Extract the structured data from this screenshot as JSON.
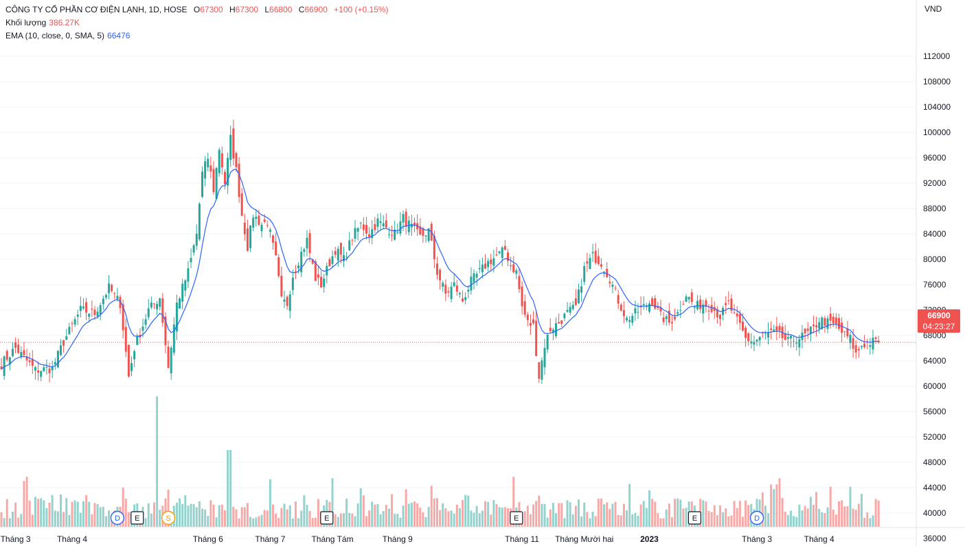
{
  "legend": {
    "title": "CÔNG TY CỔ PHẦN CƠ ĐIỆN LẠNH, 1D, HOSE",
    "o_label": "O",
    "o_value": "67300",
    "h_label": "H",
    "h_value": "67300",
    "l_label": "L",
    "l_value": "66800",
    "c_label": "C",
    "c_value": "66900",
    "change": "+100 (+0.15%)",
    "volume_label": "Khối lượng",
    "volume_value": "386.27K",
    "ema_label": "EMA (10, close, 0, SMA, 5)",
    "ema_value": "66476"
  },
  "currency": "VND",
  "price_tag": {
    "value": "66900",
    "countdown": "04:23:27"
  },
  "colors": {
    "up": "#26a69a",
    "down": "#ef5350",
    "up_volume": "#94d3cd",
    "down_volume": "#f7a9a7",
    "ema": "#2962ff",
    "grid": "#f0f3fa"
  },
  "chart_data": {
    "type": "candlestick",
    "ylim": [
      32000,
      116000
    ],
    "y_ticks": [
      36000,
      40000,
      44000,
      48000,
      52000,
      56000,
      60000,
      64000,
      68000,
      72000,
      76000,
      80000,
      84000,
      88000,
      92000,
      96000,
      100000,
      104000,
      108000,
      112000
    ],
    "x_labels": [
      {
        "label": "Tháng 3",
        "bar": 5
      },
      {
        "label": "Tháng 4",
        "bar": 25
      },
      {
        "label": "Tháng 6",
        "bar": 73
      },
      {
        "label": "Tháng 7",
        "bar": 95
      },
      {
        "label": "Tháng Tám",
        "bar": 117
      },
      {
        "label": "Tháng 9",
        "bar": 140
      },
      {
        "label": "Tháng 11",
        "bar": 184
      },
      {
        "label": "Tháng Mười hai",
        "bar": 206
      },
      {
        "label": "2023",
        "bar": 229
      },
      {
        "label": "Tháng 3",
        "bar": 267
      },
      {
        "label": "Tháng 4",
        "bar": 289
      }
    ],
    "events": [
      {
        "label": "D",
        "bar": 41,
        "color": "#2962ff"
      },
      {
        "label": "E",
        "bar": 48,
        "color": "#131722"
      },
      {
        "label": "S",
        "bar": 59,
        "color": "#ff9800"
      },
      {
        "label": "E",
        "bar": 115,
        "color": "#131722"
      },
      {
        "label": "E",
        "bar": 182,
        "color": "#131722"
      },
      {
        "label": "E",
        "bar": 245,
        "color": "#131722"
      },
      {
        "label": "D",
        "bar": 267,
        "color": "#2962ff"
      }
    ],
    "close_anchors": [
      [
        0,
        63500
      ],
      [
        5,
        66000
      ],
      [
        8,
        64500
      ],
      [
        12,
        62500
      ],
      [
        18,
        62800
      ],
      [
        22,
        67000
      ],
      [
        28,
        72000
      ],
      [
        33,
        71500
      ],
      [
        38,
        75500
      ],
      [
        42,
        73000
      ],
      [
        45,
        61500
      ],
      [
        47,
        66000
      ],
      [
        52,
        72000
      ],
      [
        56,
        74000
      ],
      [
        59,
        63000
      ],
      [
        62,
        73000
      ],
      [
        66,
        78000
      ],
      [
        69,
        84000
      ],
      [
        71,
        93500
      ],
      [
        73,
        96000
      ],
      [
        75,
        91000
      ],
      [
        77,
        97500
      ],
      [
        79,
        92000
      ],
      [
        81,
        99000
      ],
      [
        83,
        94000
      ],
      [
        85,
        87000
      ],
      [
        87,
        82000
      ],
      [
        89,
        87000
      ],
      [
        92,
        85500
      ],
      [
        94,
        86000
      ],
      [
        97,
        80000
      ],
      [
        99,
        73500
      ],
      [
        101,
        73000
      ],
      [
        103,
        77500
      ],
      [
        106,
        81000
      ],
      [
        108,
        83000
      ],
      [
        111,
        77000
      ],
      [
        113,
        76000
      ],
      [
        116,
        79500
      ],
      [
        118,
        81500
      ],
      [
        121,
        80000
      ],
      [
        124,
        83500
      ],
      [
        127,
        85500
      ],
      [
        130,
        84000
      ],
      [
        133,
        86000
      ],
      [
        136,
        85000
      ],
      [
        139,
        84000
      ],
      [
        142,
        86500
      ],
      [
        145,
        85000
      ],
      [
        148,
        83500
      ],
      [
        151,
        84500
      ],
      [
        154,
        78000
      ],
      [
        157,
        74500
      ],
      [
        160,
        76000
      ],
      [
        163,
        73500
      ],
      [
        166,
        76500
      ],
      [
        169,
        78000
      ],
      [
        172,
        79500
      ],
      [
        175,
        80500
      ],
      [
        178,
        81500
      ],
      [
        180,
        79000
      ],
      [
        182,
        78000
      ],
      [
        184,
        72500
      ],
      [
        186,
        70000
      ],
      [
        188,
        69500
      ],
      [
        190,
        61500
      ],
      [
        192,
        66500
      ],
      [
        194,
        69000
      ],
      [
        197,
        70000
      ],
      [
        200,
        71500
      ],
      [
        203,
        72500
      ],
      [
        206,
        78500
      ],
      [
        209,
        80500
      ],
      [
        212,
        79500
      ],
      [
        215,
        77000
      ],
      [
        218,
        73500
      ],
      [
        221,
        70500
      ],
      [
        224,
        71500
      ],
      [
        227,
        72500
      ],
      [
        230,
        73500
      ],
      [
        233,
        71000
      ],
      [
        236,
        70000
      ],
      [
        239,
        71500
      ],
      [
        242,
        74500
      ],
      [
        245,
        72500
      ],
      [
        248,
        73000
      ],
      [
        251,
        72500
      ],
      [
        254,
        71000
      ],
      [
        257,
        73000
      ],
      [
        259,
        71000
      ],
      [
        261,
        69500
      ],
      [
        263,
        67500
      ],
      [
        266,
        67000
      ],
      [
        269,
        68000
      ],
      [
        272,
        68500
      ],
      [
        275,
        68000
      ],
      [
        278,
        67000
      ],
      [
        281,
        67500
      ],
      [
        284,
        68000
      ],
      [
        287,
        69000
      ],
      [
        289,
        70500
      ],
      [
        292,
        70000
      ],
      [
        295,
        69500
      ],
      [
        298,
        68000
      ],
      [
        300,
        67500
      ],
      [
        302,
        65000
      ],
      [
        304,
        66500
      ],
      [
        306,
        66800
      ],
      [
        308,
        67000
      ],
      [
        310,
        66900
      ]
    ],
    "volume_scale_max": 44000,
    "last_price": 66900
  }
}
